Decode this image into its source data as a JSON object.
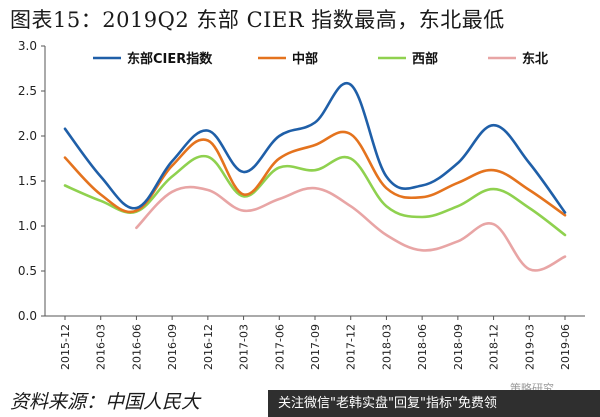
{
  "header": {
    "title": "图表15：2019Q2 东部 CIER 指数最高，东北最低"
  },
  "footer": {
    "source": "资料来源：中国人民大",
    "banner": "关注微信\"老韩实盘\"回复\"指标\"免费领",
    "watermark": "策略研究"
  },
  "chart_data": {
    "type": "line",
    "title": "",
    "xlabel": "",
    "ylabel": "",
    "ylim": [
      0.0,
      3.0
    ],
    "yticks": [
      "3.0",
      "2.5",
      "2.0",
      "1.5",
      "1.0",
      "0.5",
      "0.0"
    ],
    "x": [
      "2015-12",
      "2016-03",
      "2016-06",
      "2016-09",
      "2016-12",
      "2017-03",
      "2017-06",
      "2017-09",
      "2017-12",
      "2018-03",
      "2018-06",
      "2018-09",
      "2018-12",
      "2019-03",
      "2019-06"
    ],
    "legend_position": "top",
    "series": [
      {
        "name": "东部CIER指数",
        "color": "#1f5fa8",
        "values": [
          2.08,
          1.55,
          1.2,
          1.72,
          2.06,
          1.6,
          2.0,
          2.15,
          2.57,
          1.55,
          1.45,
          1.7,
          2.12,
          1.7,
          1.15
        ]
      },
      {
        "name": "中部",
        "color": "#e4731e",
        "values": [
          1.76,
          1.35,
          1.17,
          1.67,
          1.95,
          1.35,
          1.75,
          1.9,
          2.02,
          1.42,
          1.32,
          1.48,
          1.62,
          1.4,
          1.12
        ]
      },
      {
        "name": "西部",
        "color": "#8fd14f",
        "values": [
          1.45,
          1.28,
          1.16,
          1.55,
          1.77,
          1.33,
          1.65,
          1.62,
          1.75,
          1.22,
          1.1,
          1.22,
          1.41,
          1.2,
          0.9
        ]
      },
      {
        "name": "东北",
        "color": "#e8a5a5",
        "values": [
          null,
          null,
          0.98,
          1.38,
          1.4,
          1.17,
          1.3,
          1.42,
          1.22,
          0.9,
          0.73,
          0.83,
          1.02,
          0.52,
          0.66
        ]
      }
    ]
  }
}
